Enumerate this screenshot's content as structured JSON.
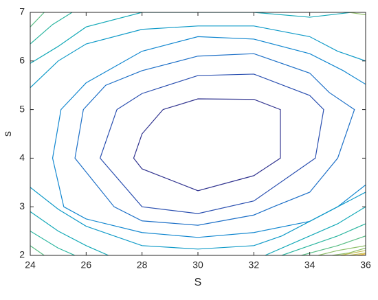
{
  "chart_data": {
    "type": "contour",
    "xlabel": "S",
    "ylabel": "s",
    "xlim": [
      24,
      36
    ],
    "ylim": [
      2,
      7
    ],
    "xticks": [
      24,
      26,
      28,
      30,
      32,
      34,
      36
    ],
    "yticks": [
      2,
      3,
      4,
      5,
      6,
      7
    ],
    "series": [
      {
        "color": "#30338f",
        "x": [
          28.75,
          30,
          32,
          32.95,
          32.95,
          32,
          30,
          28,
          27.7,
          28,
          28.75
        ],
        "y": [
          5.0,
          5.22,
          5.21,
          5.0,
          4.0,
          3.64,
          3.33,
          3.78,
          4.0,
          4.5,
          5.0
        ]
      },
      {
        "color": "#2a4fb0",
        "x": [
          27.1,
          28,
          30,
          32,
          34,
          34.5,
          34.2,
          32,
          30,
          28,
          26.5,
          27.1
        ],
        "y": [
          5.0,
          5.33,
          5.7,
          5.73,
          5.29,
          5.0,
          4.0,
          3.12,
          2.86,
          3.0,
          4.0,
          5.0
        ]
      },
      {
        "color": "#1c6fc7",
        "x": [
          25.9,
          26.7,
          28,
          30,
          32,
          34,
          34.7,
          35.6,
          35,
          34,
          32.7,
          32,
          30,
          28,
          27,
          25.6,
          25.9
        ],
        "y": [
          5.0,
          5.5,
          5.8,
          6.1,
          6.15,
          5.75,
          5.35,
          5.0,
          4.0,
          3.3,
          3.0,
          2.83,
          2.62,
          2.71,
          3.0,
          4.0,
          5.0
        ]
      },
      {
        "color": "#1287d0",
        "x": [
          36,
          35.2,
          34,
          32,
          30,
          28,
          26,
          25.1,
          24.8,
          25.2,
          26,
          28,
          30,
          32,
          34,
          35,
          36
        ],
        "y": [
          5.52,
          5.8,
          6.15,
          6.45,
          6.5,
          6.2,
          5.55,
          5.0,
          4.0,
          3.0,
          2.75,
          2.47,
          2.37,
          2.47,
          2.7,
          3.0,
          3.45
        ]
      },
      {
        "color": "#0f9ac8",
        "x": [
          36,
          35,
          34,
          32,
          30,
          28,
          26,
          25,
          24,
          null,
          24,
          25,
          26,
          28,
          30,
          32,
          33,
          34,
          35,
          36
        ],
        "y": [
          6.0,
          6.2,
          6.5,
          6.72,
          6.72,
          6.65,
          6.35,
          6.0,
          5.45,
          null,
          3.4,
          2.95,
          2.6,
          2.2,
          2.13,
          2.2,
          2.4,
          2.7,
          3.0,
          3.3
        ]
      },
      {
        "color": "#14a9b8",
        "x": [
          35.5,
          34,
          32,
          30,
          28,
          26,
          25,
          24,
          null,
          24,
          25,
          26,
          26.8,
          null,
          32.4,
          34,
          35,
          36
        ],
        "y": [
          7.0,
          6.9,
          7.0,
          7.0,
          7.0,
          6.7,
          6.3,
          5.95,
          null,
          2.9,
          2.5,
          2.2,
          2.0,
          null,
          2.0,
          2.4,
          2.65,
          3.0
        ]
      },
      {
        "color": "#2ab59f",
        "x": [
          25.5,
          24.8,
          24,
          null,
          24,
          25,
          25.6,
          null,
          33,
          34,
          35,
          36
        ],
        "y": [
          7.0,
          6.75,
          6.35,
          null,
          2.5,
          2.15,
          2.0,
          null,
          2.0,
          2.2,
          2.4,
          2.65
        ]
      },
      {
        "color": "#59bd85",
        "x": [
          24.5,
          24,
          null,
          24,
          24.5,
          null,
          33.7,
          35,
          36
        ],
        "y": [
          7.0,
          6.7,
          null,
          2.2,
          2.0,
          null,
          2.0,
          2.2,
          2.4
        ]
      },
      {
        "color": "#8fbf68",
        "x": [
          34.3,
          35,
          36,
          null,
          35.4,
          36,
          null,
          34.8,
          35.4,
          36
        ],
        "y": [
          2.0,
          2.1,
          2.2,
          null,
          7.0,
          6.95,
          null,
          2.0,
          2.05,
          2.15
        ]
      },
      {
        "color": "#c2bb4e",
        "x": [
          35.1,
          36,
          null,
          35.4,
          36
        ],
        "y": [
          2.0,
          2.1,
          null,
          2.0,
          2.05
        ]
      },
      {
        "color": "#eeb93b",
        "x": [
          35.7,
          36
        ],
        "y": [
          2.0,
          2.03
        ]
      }
    ]
  }
}
